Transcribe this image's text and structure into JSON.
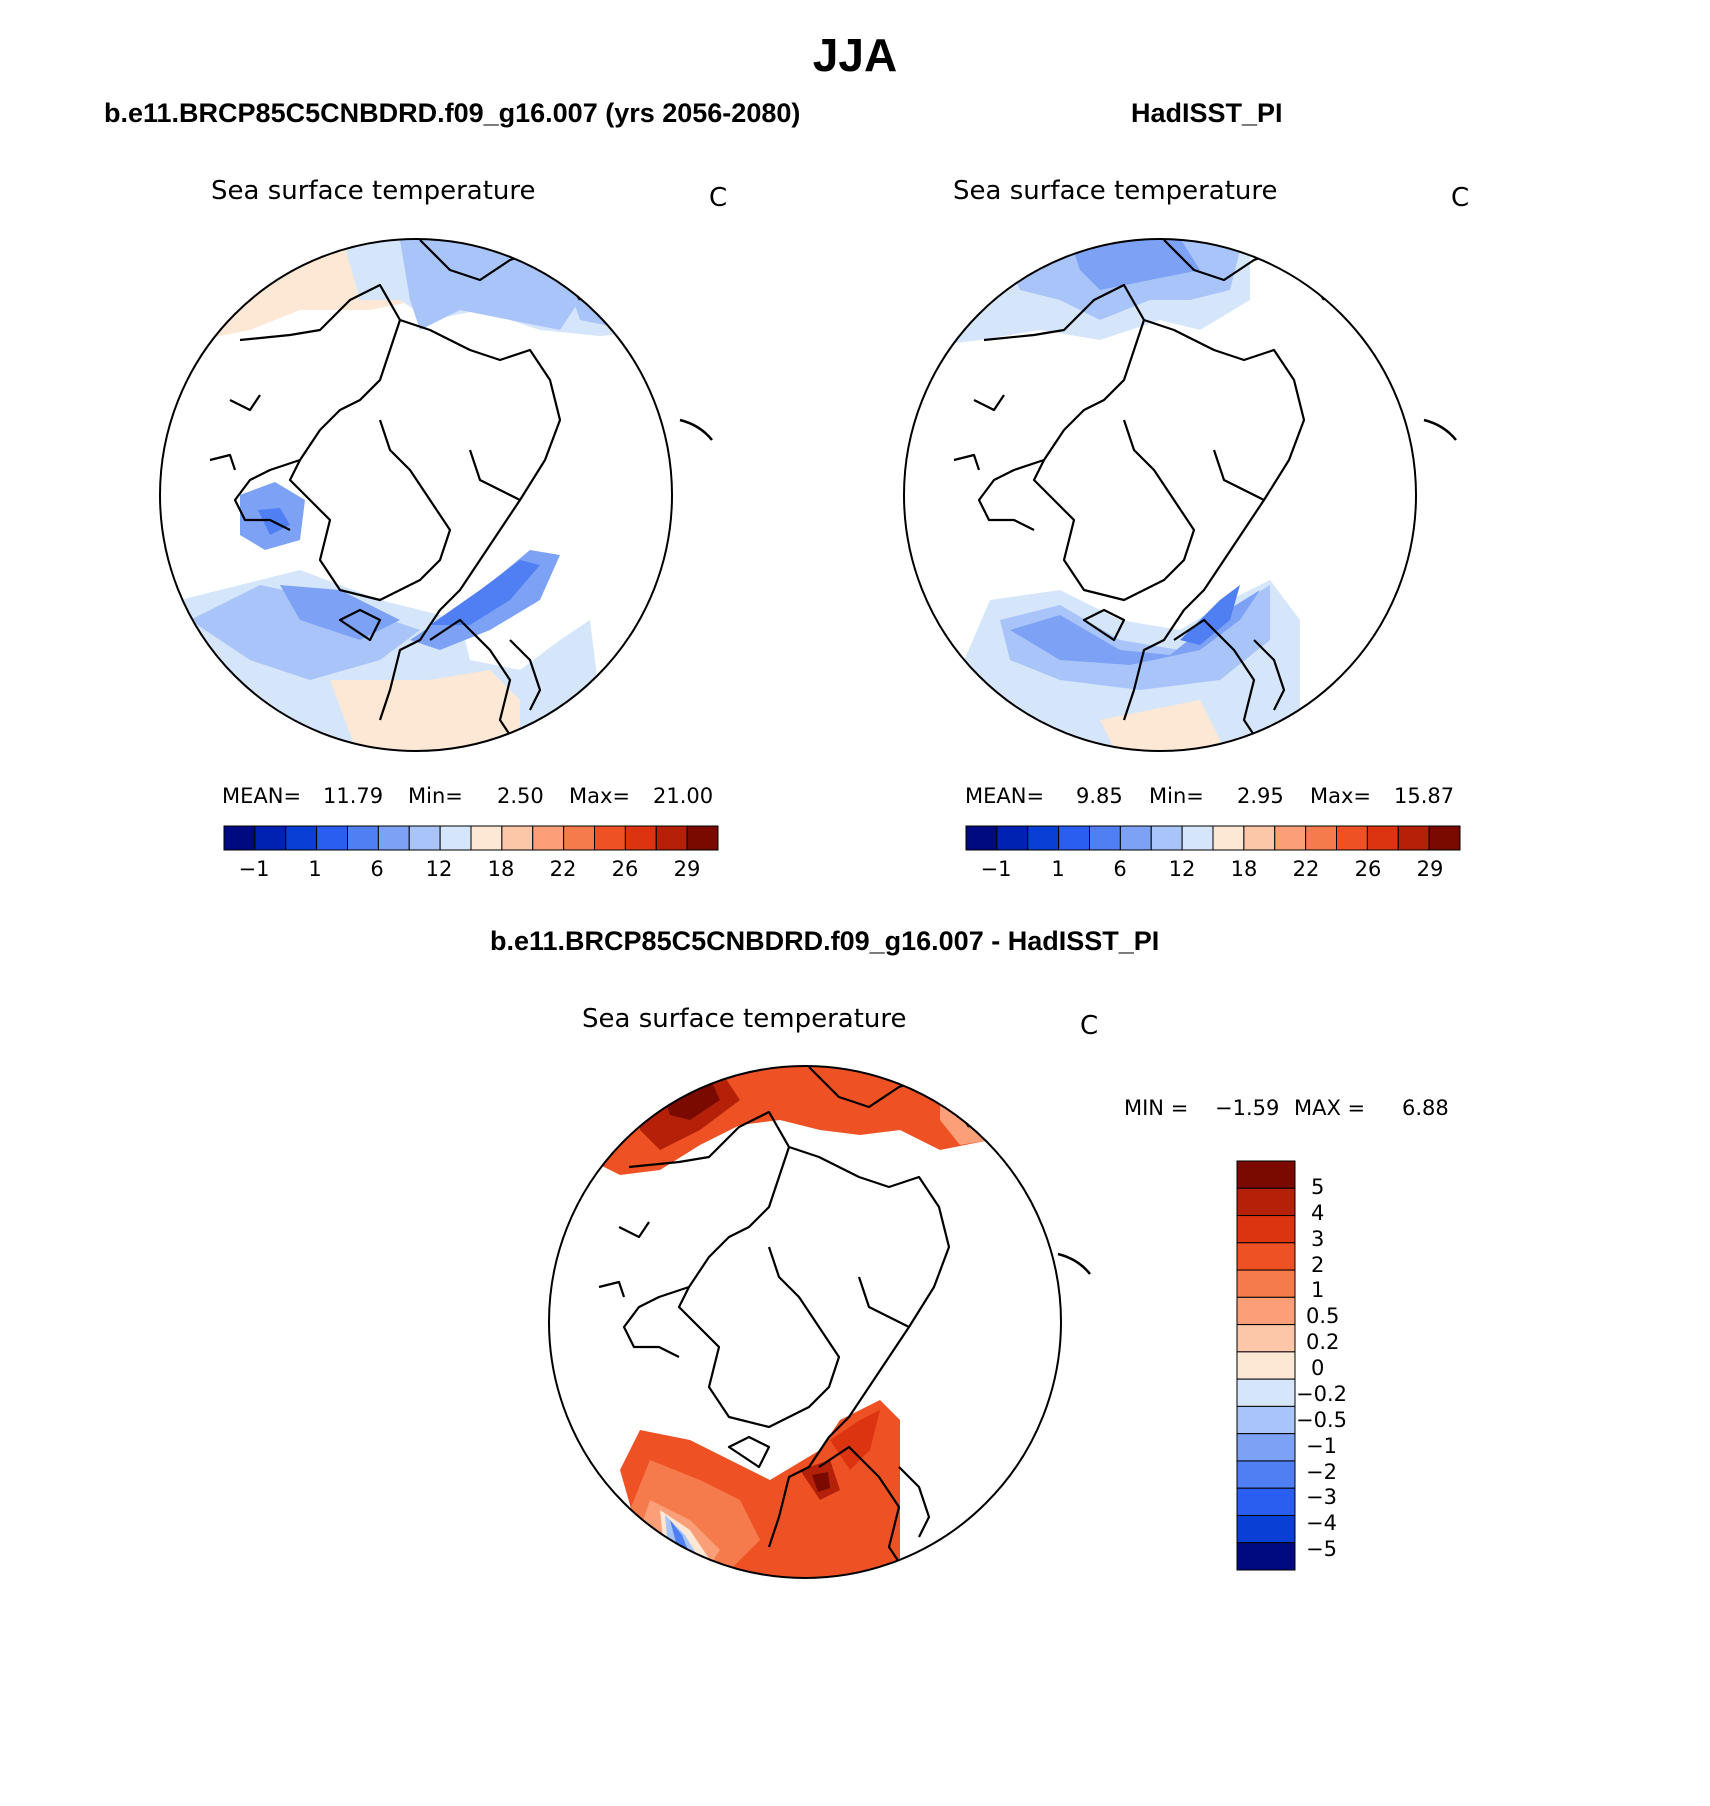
{
  "page_title": "JJA",
  "colors": {
    "scale": [
      "#000a80",
      "#0022b3",
      "#0a3fd6",
      "#2a5ef0",
      "#4f7ff2",
      "#7da2f5",
      "#a8c4f8",
      "#d5e6fb",
      "#fde8d6",
      "#fcc6a8",
      "#fa9f78",
      "#f57a4c",
      "#ee5224",
      "#dc3410",
      "#b42108",
      "#7a0a00"
    ],
    "diff_scale": [
      "#7a0a00",
      "#b42108",
      "#dc3410",
      "#ee5224",
      "#f57a4c",
      "#fa9f78",
      "#fcc6a8",
      "#fde8d6",
      "#d5e6fb",
      "#a8c4f8",
      "#7da2f5",
      "#4f7ff2",
      "#2a5ef0",
      "#0a3fd6",
      "#000a80"
    ]
  },
  "panels": [
    {
      "case_title": "b.e11.BRCP85C5CNBDRD.f09_g16.007 (yrs 2056-2080)",
      "label": "Sea surface temperature",
      "units": "C",
      "mean_label": "MEAN=",
      "mean": "11.79",
      "min_label": "Min=",
      "min": "2.50",
      "max_label": "Max=",
      "max": "21.00",
      "ticks": [
        "−1",
        "1",
        "6",
        "12",
        "18",
        "22",
        "26",
        "29"
      ]
    },
    {
      "case_title": "HadISST_PI",
      "label": "Sea surface temperature",
      "units": "C",
      "mean_label": "MEAN=",
      "mean": "9.85",
      "min_label": "Min=",
      "min": "2.95",
      "max_label": "Max=",
      "max": "15.87",
      "ticks": [
        "−1",
        "1",
        "6",
        "12",
        "18",
        "22",
        "26",
        "29"
      ]
    },
    {
      "case_title": "b.e11.BRCP85C5CNBDRD.f09_g16.007 - HadISST_PI",
      "label": "Sea surface temperature",
      "units": "C",
      "min_label": "MIN =",
      "min": "−1.59",
      "max_label": "MAX =",
      "max": "6.88",
      "ticks": [
        "5",
        "4",
        "3",
        "2",
        "1",
        "0.5",
        "0.2",
        "0",
        "−0.2",
        "−0.5",
        "−1",
        "−2",
        "−3",
        "−4",
        "−5"
      ]
    }
  ]
}
